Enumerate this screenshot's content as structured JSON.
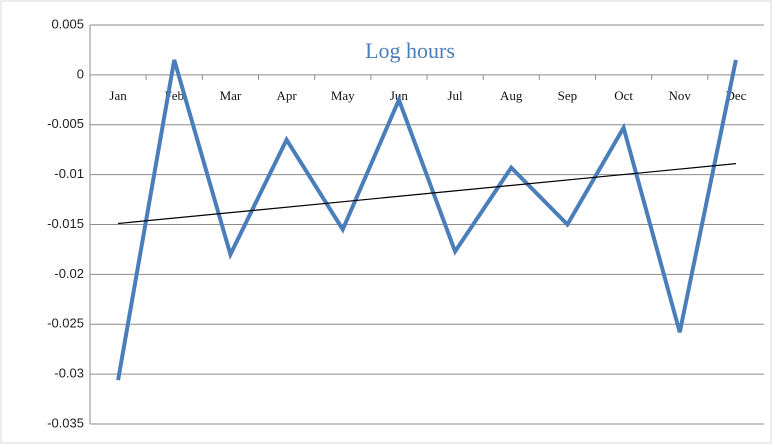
{
  "chart_data": {
    "type": "line",
    "title": "Log hours",
    "categories": [
      "Jan",
      "Feb",
      "Mar",
      "Apr",
      "May",
      "Jun",
      "Jul",
      "Aug",
      "Sep",
      "Oct",
      "Nov",
      "Dec"
    ],
    "values": [
      -0.0306,
      0.0015,
      -0.018,
      -0.0065,
      -0.0155,
      -0.0025,
      -0.0177,
      -0.0093,
      -0.015,
      -0.0053,
      -0.0258,
      0.0015
    ],
    "color": "#4a7ebb",
    "trendline": {
      "color": "#000000",
      "values": [
        -0.0149,
        -0.0089
      ]
    },
    "ylim": [
      -0.035,
      0.005
    ],
    "yticks": [
      0.005,
      0,
      -0.005,
      -0.01,
      -0.015,
      -0.02,
      -0.025,
      -0.03,
      -0.035
    ],
    "grid": true
  }
}
